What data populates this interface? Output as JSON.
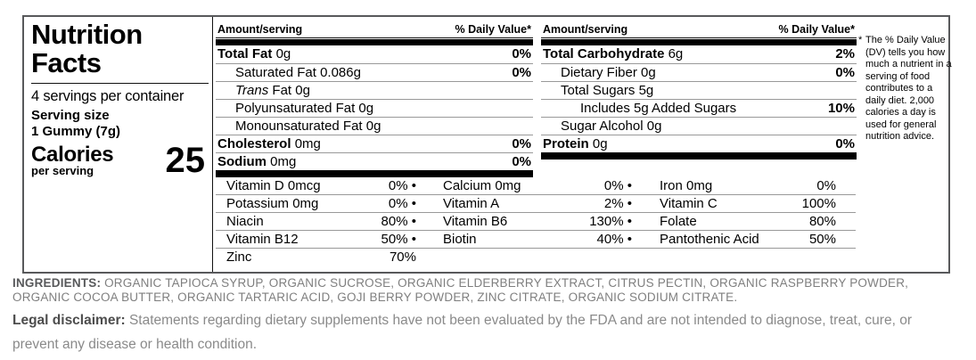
{
  "label": {
    "title1": "Nutrition",
    "title2": "Facts",
    "servings": "4 servings per container",
    "serving_size_label": "Serving size",
    "serving_size_value": "1 Gummy (7g)",
    "calories_label": "Calories",
    "calories_sub": "per serving",
    "calories_value": "25",
    "col_header_amount": "Amount/serving",
    "col_header_dv": "% Daily Value*",
    "col1": {
      "rows": [
        {
          "name": "Total Fat",
          "amount": "0g",
          "dv": "0%"
        },
        {
          "name": "Saturated Fat",
          "amount": "0.086g",
          "dv": "0%"
        },
        {
          "it": "Trans",
          "name": "Fat",
          "amount": "0g",
          "dv": ""
        },
        {
          "name": "Polyunsaturated Fat",
          "amount": "0g",
          "dv": ""
        },
        {
          "name": "Monounsaturated Fat",
          "amount": "0g",
          "dv": ""
        },
        {
          "name": "Cholesterol",
          "amount": "0mg",
          "dv": "0%"
        },
        {
          "name": "Sodium",
          "amount": "0mg",
          "dv": "0%"
        }
      ]
    },
    "col2": {
      "rows": [
        {
          "name": "Total Carbohydrate",
          "amount": "6g",
          "dv": "2%"
        },
        {
          "name": "Dietary Fiber",
          "amount": "0g",
          "dv": "0%"
        },
        {
          "name": "Total Sugars",
          "amount": "5g",
          "dv": ""
        },
        {
          "name": "Includes 5g Added Sugars",
          "amount": "",
          "dv": "10%"
        },
        {
          "name": "Sugar Alcohol",
          "amount": "0g",
          "dv": ""
        },
        {
          "name": "Protein",
          "amount": "0g",
          "dv": "0%"
        }
      ]
    },
    "micros": {
      "rows": [
        [
          {
            "name": "Vitamin D 0mcg",
            "value": "0% •"
          },
          {
            "name": "Calcium 0mg",
            "value": "0% •"
          },
          {
            "name": "Iron 0mg",
            "value": "0%"
          }
        ],
        [
          {
            "name": "Potassium 0mg",
            "value": "0% •"
          },
          {
            "name": "Vitamin A",
            "value": "2% •"
          },
          {
            "name": "Vitamin C",
            "value": "100%"
          }
        ],
        [
          {
            "name": "Niacin",
            "value": "80% •"
          },
          {
            "name": "Vitamin B6",
            "value": "130% •"
          },
          {
            "name": "Folate",
            "value": "80%"
          }
        ],
        [
          {
            "name": "Vitamin B12",
            "value": "50% •"
          },
          {
            "name": "Biotin",
            "value": "40% •"
          },
          {
            "name": "Pantothenic Acid",
            "value": "50%"
          }
        ],
        [
          {
            "name": "Zinc",
            "value": "70%"
          }
        ]
      ]
    },
    "footnote_asterisk": "*",
    "footnote": "The % Daily Value (DV) tells you how much a nutrient in a serving of food contributes to a daily diet. 2,000 calories a day is used for general nutrition advice."
  },
  "ingredients": {
    "label": "INGREDIENTS:",
    "text": " ORGANIC TAPIOCA SYRUP, ORGANIC SUCROSE, ORGANIC ELDERBERRY EXTRACT, CITRUS PECTIN, ORGANIC RASPBERRY POWDER, ORGANIC COCOA BUTTER, ORGANIC TARTARIC ACID, GOJI BERRY POWDER, ZINC CITRATE, ORGANIC SODIUM CITRATE."
  },
  "disclaimer": {
    "label": "Legal disclaimer:",
    "text": " Statements regarding dietary supplements have not been evaluated by the FDA and are not intended to diagnose, treat, cure, or prevent any disease or health condition."
  },
  "colors": {
    "text": "#000000",
    "muted_text": "#8a8a8a",
    "hairline": "#999999",
    "bar": "#000000"
  }
}
